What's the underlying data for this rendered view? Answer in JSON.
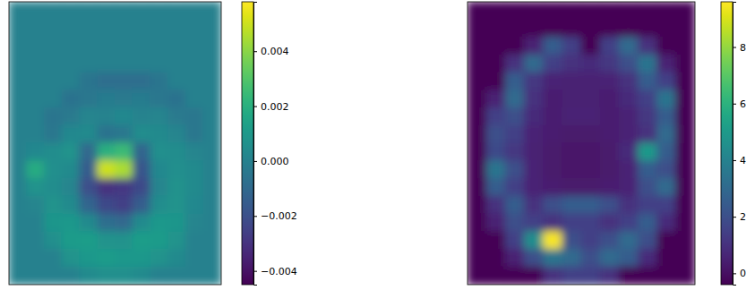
{
  "chart_data": [
    {
      "type": "heatmap",
      "color": "viridis",
      "tick_labels": false,
      "zlim": [
        -0.0045,
        0.0058
      ],
      "zticks": [
        {
          "value": -0.004,
          "label": "−0.004"
        },
        {
          "value": -0.002,
          "label": "−0.002"
        },
        {
          "value": 0,
          "label": "0.000"
        },
        {
          "value": 0.002,
          "label": "0.002"
        },
        {
          "value": 0.004,
          "label": "0.004"
        }
      ],
      "cells": [
        [
          0,
          0,
          0,
          0,
          0,
          0,
          0,
          0,
          0,
          0,
          0,
          0
        ],
        [
          0,
          0,
          0,
          0,
          0,
          0,
          0,
          0,
          0,
          0,
          0,
          0
        ],
        [
          0,
          0,
          0,
          0,
          0,
          0,
          0,
          0,
          0,
          0,
          0,
          0
        ],
        [
          0,
          0,
          0,
          0,
          0,
          0,
          0,
          0,
          0,
          0,
          0,
          0
        ],
        [
          0,
          0,
          0,
          0,
          -0.0005,
          -0.0008,
          -0.0008,
          -0.0008,
          -0.0005,
          0,
          0,
          0
        ],
        [
          0,
          0,
          0,
          -0.0006,
          -0.0004,
          -0.0002,
          -0.0003,
          -0.0002,
          -0.0004,
          -0.0006,
          0,
          0
        ],
        [
          0,
          0,
          -0.0005,
          -0.0003,
          0.0002,
          0.0001,
          0.0003,
          0.0001,
          0.0002,
          -0.0003,
          -0.0004,
          0
        ],
        [
          0,
          0,
          -0.0004,
          0.0003,
          0.0004,
          -0.0006,
          -0.0004,
          0.0005,
          0.0004,
          0.0002,
          -0.0004,
          0
        ],
        [
          0,
          0.0003,
          0.0005,
          0.0008,
          -0.001,
          0.002,
          0.0025,
          -0.0012,
          0.0006,
          0.0005,
          0.0002,
          0
        ],
        [
          0,
          0.0018,
          0.0006,
          0.0004,
          -0.0015,
          0.005,
          0.0045,
          -0.0018,
          0.0003,
          0.0006,
          0.0004,
          0
        ],
        [
          0,
          0.0008,
          0.0005,
          0.0002,
          -0.002,
          -0.003,
          -0.0028,
          -0.0022,
          0.0002,
          0.0007,
          0.0004,
          0
        ],
        [
          0,
          0.0002,
          0.0008,
          0.0004,
          -0.0012,
          -0.0022,
          -0.0025,
          -0.0015,
          0.0005,
          0.0008,
          0.0003,
          0
        ],
        [
          0,
          0,
          0.0009,
          0.001,
          0.0004,
          -0.0008,
          -0.001,
          0.0004,
          0.001,
          0.0009,
          0.0002,
          0
        ],
        [
          0,
          0,
          0.0006,
          0.0011,
          0.0012,
          0.0008,
          0.0007,
          0.0012,
          0.0011,
          0.0008,
          0,
          0
        ],
        [
          0,
          0,
          0,
          0.0008,
          0.001,
          0.0011,
          0.001,
          0.001,
          0.0008,
          0.0004,
          0,
          0
        ],
        [
          0,
          0,
          0,
          0,
          0.0004,
          0.0006,
          0.0006,
          0.0004,
          0,
          0,
          0,
          0
        ]
      ]
    },
    {
      "type": "heatmap",
      "color": "viridis",
      "tick_labels": false,
      "zlim": [
        -0.4,
        9.6
      ],
      "zticks": [
        0,
        2,
        4,
        6,
        8
      ],
      "cells": [
        [
          -0.4,
          -0.4,
          -0.4,
          -0.4,
          -0.4,
          -0.4,
          -0.4,
          -0.4,
          -0.4,
          -0.4,
          -0.4,
          -0.4
        ],
        [
          -0.4,
          -0.4,
          -0.4,
          -0.4,
          -0.4,
          -0.4,
          -0.4,
          -0.4,
          -0.4,
          -0.4,
          -0.4,
          -0.4
        ],
        [
          -0.4,
          -0.4,
          -0.4,
          0.5,
          2.5,
          1.5,
          -0.4,
          1.5,
          3.0,
          1.0,
          -0.4,
          -0.4
        ],
        [
          -0.4,
          -0.4,
          1.0,
          3.0,
          1.5,
          1.0,
          0.8,
          1.2,
          2.0,
          3.5,
          0.5,
          -0.4
        ],
        [
          -0.4,
          -0.4,
          2.5,
          1.2,
          0.6,
          0.5,
          0.5,
          0.6,
          1.0,
          2.5,
          1.5,
          -0.4
        ],
        [
          -0.4,
          0.5,
          3.0,
          1.0,
          0.4,
          0.5,
          0.5,
          0.4,
          0.8,
          1.5,
          3.5,
          -0.4
        ],
        [
          -0.4,
          1.5,
          2.0,
          0.8,
          0.4,
          0.6,
          0.6,
          0.4,
          0.6,
          1.2,
          2.5,
          -0.4
        ],
        [
          -0.4,
          2.0,
          1.5,
          0.6,
          0.4,
          0.3,
          0.3,
          0.4,
          0.6,
          1.0,
          3.0,
          -0.4
        ],
        [
          -0.4,
          1.8,
          1.2,
          0.5,
          0.3,
          0.2,
          0.2,
          0.3,
          0.8,
          5.0,
          2.5,
          -0.4
        ],
        [
          -0.4,
          3.5,
          2.0,
          0.6,
          0.3,
          0.2,
          0.2,
          0.3,
          0.6,
          2.5,
          2.0,
          -0.4
        ],
        [
          -0.4,
          2.5,
          1.5,
          0.6,
          0.4,
          0.3,
          0.3,
          0.4,
          0.6,
          2.0,
          3.0,
          -0.4
        ],
        [
          -0.4,
          1.0,
          2.5,
          1.0,
          2.0,
          2.5,
          2.5,
          2.0,
          1.0,
          1.5,
          1.5,
          -0.4
        ],
        [
          -0.4,
          0.5,
          2.0,
          1.5,
          1.0,
          1.5,
          1.5,
          1.0,
          1.5,
          2.5,
          0.8,
          -0.4
        ],
        [
          -0.4,
          -0.4,
          1.5,
          4.5,
          9.5,
          2.0,
          1.5,
          2.0,
          3.0,
          2.0,
          -0.4,
          -0.4
        ],
        [
          -0.4,
          -0.4,
          0.5,
          2.0,
          3.5,
          3.0,
          2.0,
          3.0,
          2.5,
          0.8,
          -0.4,
          -0.4
        ],
        [
          -0.4,
          -0.4,
          -0.4,
          -0.4,
          1.0,
          1.5,
          1.5,
          1.0,
          -0.4,
          -0.4,
          -0.4,
          -0.4
        ]
      ]
    }
  ]
}
